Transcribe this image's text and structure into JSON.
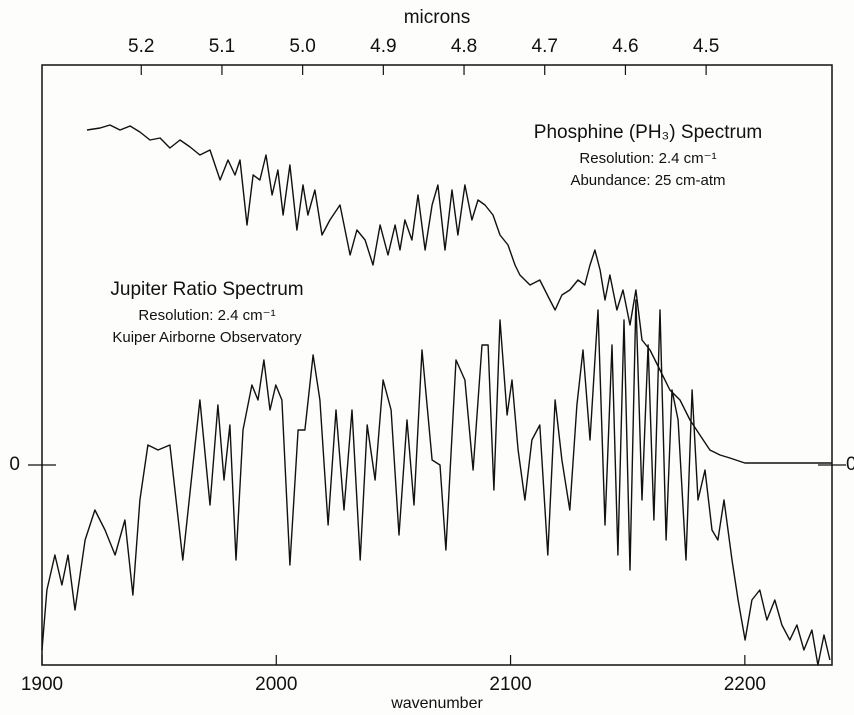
{
  "chart_data": {
    "type": "line",
    "x_label": "wavenumber",
    "x2_label": "microns",
    "xlim": [
      1900,
      2237.2
    ],
    "xticks": [
      1900,
      2000,
      2100,
      2200
    ],
    "x2lim": [
      5.323,
      4.344
    ],
    "x2ticks": [
      5.2,
      5.1,
      {
        "value": 5,
        "label": "5.0"
      },
      4.9,
      4.8,
      4.7,
      4.6,
      4.5
    ],
    "ylim": [
      -1,
      2
    ],
    "yticks": [
      0
    ],
    "annotations": [
      {
        "lines": [
          "Phosphine (PH₃) Spectrum",
          "Resolution: 2.4 cm⁻¹",
          "Abundance: 25 cm-atm"
        ]
      },
      {
        "lines": [
          "Jupiter Ratio Spectrum",
          "Resolution: 2.4 cm⁻¹",
          "Kuiper Airborne Observatory"
        ]
      }
    ],
    "series": [
      {
        "color": "#111111",
        "x": [
          1919.2,
          1924.8,
          1929.0,
          1933.3,
          1937.6,
          1941.8,
          1946.1,
          1950.4,
          1954.6,
          1958.9,
          1963.2,
          1967.4,
          1971.7,
          1976.0,
          1979.4,
          1982.4,
          1984.5,
          1987.5,
          1990.1,
          1993.0,
          1995.6,
          1998.2,
          2000.7,
          2002.9,
          2005.8,
          2008.8,
          2011.4,
          2013.5,
          2016.5,
          2019.5,
          2022.9,
          2027.2,
          2031.5,
          2034.4,
          2037.9,
          2041.3,
          2044.3,
          2047.7,
          2050.7,
          2052.8,
          2054.9,
          2057.9,
          2060.5,
          2063.5,
          2066.5,
          2069.0,
          2072.0,
          2075.0,
          2077.5,
          2080.5,
          2083.5,
          2086.1,
          2089.1,
          2092.5,
          2095.5,
          2098.9,
          2101.9,
          2104.0,
          2108.3,
          2112.5,
          2116.8,
          2119.0,
          2121.9,
          2125.3,
          2128.8,
          2131.7,
          2133.9,
          2136.0,
          2138.2,
          2140.3,
          2142.4,
          2145.4,
          2148.0,
          2151.0,
          2153.5,
          2156.1,
          2159.5,
          2163.8,
          2168.0,
          2172.3,
          2176.6,
          2180.8,
          2185.1,
          2189.4,
          2193.6,
          2200.0,
          2219.2,
          2237.2
        ],
        "values": [
          1.675,
          1.685,
          1.7,
          1.675,
          1.695,
          1.665,
          1.625,
          1.635,
          1.585,
          1.625,
          1.59,
          1.55,
          1.575,
          1.425,
          1.525,
          1.45,
          1.525,
          1.2,
          1.45,
          1.425,
          1.55,
          1.35,
          1.475,
          1.25,
          1.5,
          1.175,
          1.4,
          1.25,
          1.375,
          1.15,
          1.225,
          1.3,
          1.05,
          1.175,
          1.125,
          1.0,
          1.2,
          1.05,
          1.2,
          1.075,
          1.225,
          1.125,
          1.35,
          1.075,
          1.3,
          1.4,
          1.075,
          1.375,
          1.15,
          1.4,
          1.225,
          1.325,
          1.3,
          1.25,
          1.15,
          1.1,
          1.0,
          0.95,
          0.9,
          0.925,
          0.825,
          0.775,
          0.85,
          0.875,
          0.925,
          0.9,
          1.0,
          1.075,
          0.975,
          0.825,
          0.95,
          0.775,
          0.875,
          0.7,
          0.875,
          0.625,
          0.575,
          0.475,
          0.375,
          0.325,
          0.225,
          0.15,
          0.075,
          0.05,
          0.035,
          0.01,
          0.01,
          0.01
        ]
      },
      {
        "color": "#111111",
        "x": [
          1900.0,
          1902.1,
          1905.5,
          1908.5,
          1911.1,
          1914.1,
          1918.4,
          1922.6,
          1926.9,
          1931.2,
          1935.4,
          1938.8,
          1941.8,
          1945.2,
          1949.5,
          1954.6,
          1960.1,
          1967.4,
          1971.7,
          1975.1,
          1977.7,
          1980.2,
          1982.8,
          1985.8,
          1989.6,
          1992.2,
          1994.7,
          1997.3,
          1999.8,
          2002.4,
          2005.8,
          2009.3,
          2012.2,
          2015.7,
          2018.6,
          2022.1,
          2025.5,
          2028.9,
          2032.3,
          2035.8,
          2038.8,
          2042.2,
          2045.6,
          2049.0,
          2052.4,
          2055.8,
          2058.8,
          2062.2,
          2066.5,
          2069.9,
          2072.4,
          2076.7,
          2080.5,
          2084.0,
          2087.8,
          2090.4,
          2092.9,
          2095.5,
          2098.5,
          2100.6,
          2103.2,
          2106.1,
          2109.1,
          2112.5,
          2115.9,
          2119.0,
          2121.9,
          2125.3,
          2128.3,
          2130.9,
          2133.9,
          2137.3,
          2140.3,
          2143.3,
          2145.8,
          2148.4,
          2151.0,
          2153.5,
          2156.1,
          2158.7,
          2161.2,
          2163.8,
          2166.4,
          2168.9,
          2171.5,
          2174.9,
          2177.5,
          2180.0,
          2183.0,
          2186.0,
          2188.5,
          2191.1,
          2194.5,
          2197.1,
          2200.1,
          2203.0,
          2206.4,
          2209.4,
          2212.8,
          2215.8,
          2219.2,
          2222.2,
          2225.2,
          2228.6,
          2231.2,
          2233.8,
          2236.3
        ],
        "values": [
          -0.925,
          -0.625,
          -0.45,
          -0.6,
          -0.45,
          -0.725,
          -0.375,
          -0.225,
          -0.325,
          -0.45,
          -0.275,
          -0.65,
          -0.175,
          0.1,
          0.075,
          0.1,
          -0.475,
          0.325,
          -0.2,
          0.3,
          -0.075,
          0.2,
          -0.475,
          0.175,
          0.4,
          0.325,
          0.525,
          0.275,
          0.4,
          0.325,
          -0.5,
          0.175,
          0.175,
          0.55,
          0.325,
          -0.3,
          0.275,
          -0.225,
          0.275,
          -0.475,
          0.2,
          -0.075,
          0.425,
          0.275,
          -0.35,
          0.225,
          -0.2,
          0.575,
          0.025,
          0,
          -0.425,
          0.525,
          0.425,
          -0.025,
          0.6,
          0.6,
          -0.125,
          0.725,
          0.25,
          0.425,
          0.075,
          -0.175,
          0.125,
          0.2,
          -0.45,
          0.325,
          0.025,
          -0.225,
          0.3,
          0.575,
          0.125,
          0.775,
          -0.3,
          0.6,
          -0.45,
          0.725,
          -0.525,
          0.825,
          -0.175,
          0.6,
          -0.275,
          0.775,
          -0.375,
          0.375,
          0.225,
          -0.475,
          0.375,
          -0.175,
          -0.025,
          -0.325,
          -0.375,
          -0.175,
          -0.475,
          -0.675,
          -0.875,
          -0.675,
          -0.625,
          -0.775,
          -0.675,
          -0.8,
          -0.875,
          -0.8,
          -0.925,
          -0.825,
          -1.0,
          -0.85,
          -0.975
        ]
      }
    ]
  }
}
